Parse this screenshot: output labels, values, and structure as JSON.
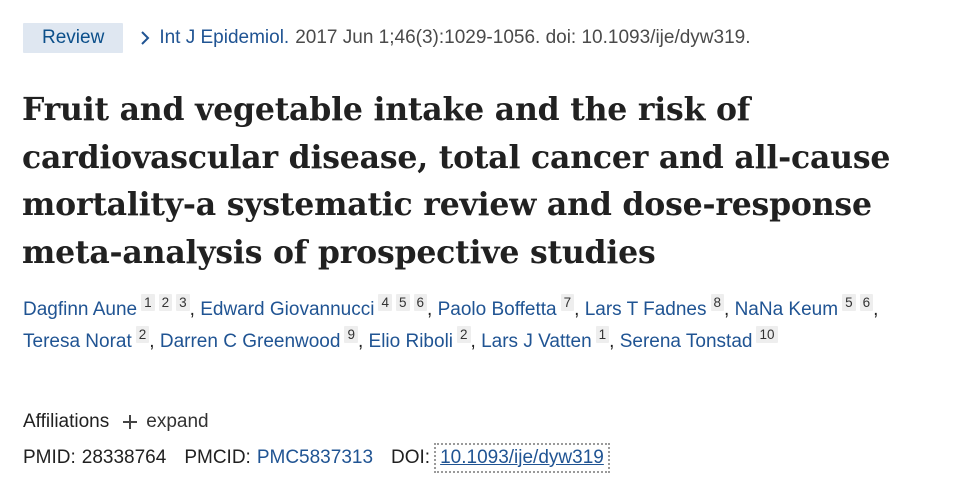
{
  "header": {
    "badge": "Review",
    "journal": "Int J Epidemiol.",
    "citation": "2017 Jun 1;46(3):1029-1056. doi: 10.1093/ije/dyw319."
  },
  "title": "Fruit and vegetable intake and the risk of cardiovascular disease, total cancer and all-cause mortality-a systematic review and dose-response meta-analysis of prospective studies",
  "authors": [
    {
      "name": "Dagfinn Aune",
      "affs": [
        "1",
        "2",
        "3"
      ]
    },
    {
      "name": "Edward Giovannucci",
      "affs": [
        "4",
        "5",
        "6"
      ]
    },
    {
      "name": "Paolo Boffetta",
      "affs": [
        "7"
      ]
    },
    {
      "name": "Lars T Fadnes",
      "affs": [
        "8"
      ]
    },
    {
      "name": "NaNa Keum",
      "affs": [
        "5",
        "6"
      ]
    },
    {
      "name": "Teresa Norat",
      "affs": [
        "2"
      ]
    },
    {
      "name": "Darren C Greenwood",
      "affs": [
        "9"
      ]
    },
    {
      "name": "Elio Riboli",
      "affs": [
        "2"
      ]
    },
    {
      "name": "Lars J Vatten",
      "affs": [
        "1"
      ]
    },
    {
      "name": "Serena Tonstad",
      "affs": [
        "10"
      ]
    }
  ],
  "affiliations": {
    "label": "Affiliations",
    "expand_label": "expand",
    "expand_icon": "plus-icon"
  },
  "identifiers": {
    "pmid_label": "PMID:",
    "pmid": "28338764",
    "pmcid_label": "PMCID:",
    "pmcid": "PMC5837313",
    "doi_label": "DOI:",
    "doi": "10.1093/ije/dyw319"
  },
  "colors": {
    "link": "#205493",
    "badge_bg": "#dfe7f1",
    "text": "#212121"
  }
}
